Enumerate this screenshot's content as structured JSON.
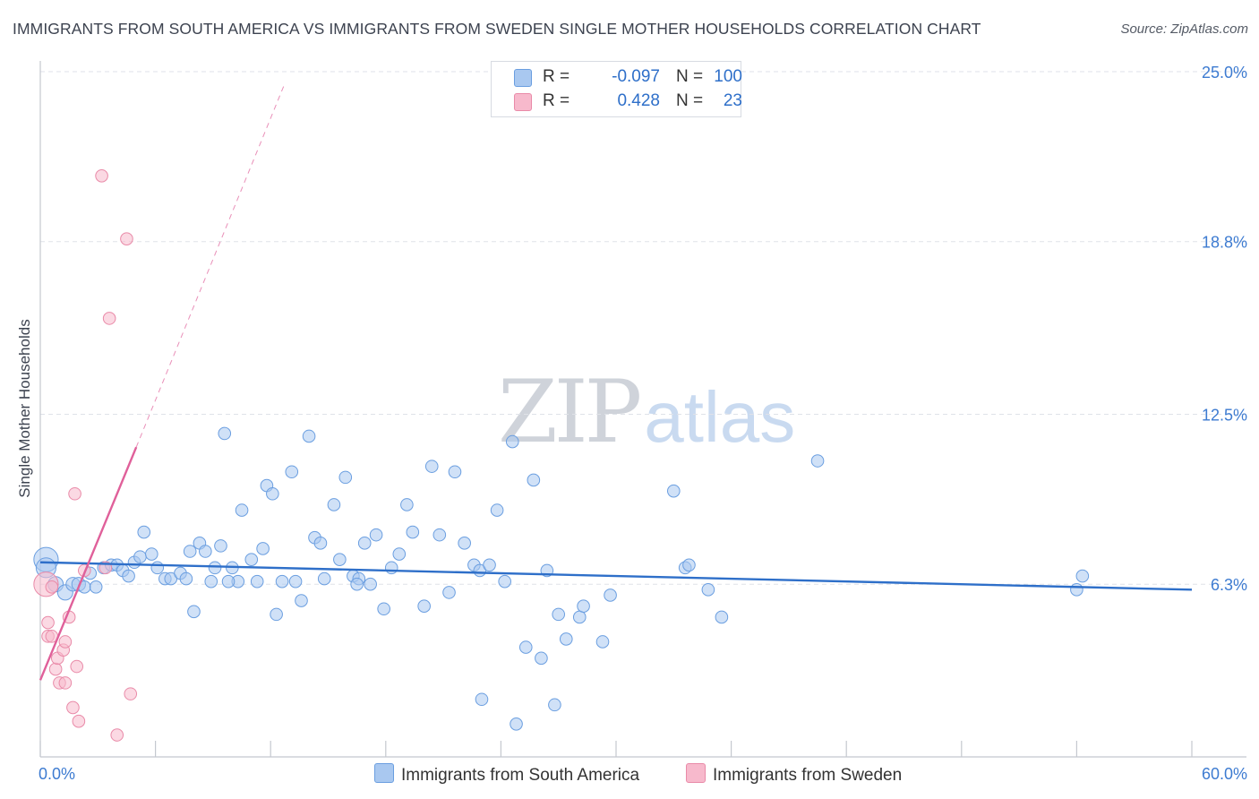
{
  "title": "IMMIGRANTS FROM SOUTH AMERICA VS IMMIGRANTS FROM SWEDEN SINGLE MOTHER HOUSEHOLDS CORRELATION CHART",
  "source": "Source: ZipAtlas.com",
  "watermark": {
    "zip": "ZIP",
    "atlas": "atlas"
  },
  "legend_top": [
    {
      "r_label": "R =",
      "r_value": "-0.097",
      "n_label": "N =",
      "n_value": "100",
      "color": "#a9c8f0",
      "border": "#6a9ee0"
    },
    {
      "r_label": "R =",
      "r_value": "0.428",
      "n_label": "N =",
      "n_value": "23",
      "color": "#f7b9cc",
      "border": "#e98aa8"
    }
  ],
  "chart_data": {
    "type": "scatter",
    "title": "IMMIGRANTS FROM SOUTH AMERICA VS IMMIGRANTS FROM SWEDEN SINGLE MOTHER HOUSEHOLDS CORRELATION CHART",
    "xlabel": "",
    "ylabel": "Single Mother Households",
    "xlim": [
      0,
      60
    ],
    "ylim": [
      0,
      25
    ],
    "x_ticks": [
      0,
      6,
      12,
      18,
      24,
      30,
      36,
      42,
      48,
      54,
      60
    ],
    "x_tick_labels": [
      {
        "value": 0,
        "label": "0.0%"
      },
      {
        "value": 60,
        "label": "60.0%"
      }
    ],
    "y_tick_labels": [
      {
        "value": 6.3,
        "label": "6.3%"
      },
      {
        "value": 12.5,
        "label": "12.5%"
      },
      {
        "value": 18.8,
        "label": "18.8%"
      },
      {
        "value": 25.0,
        "label": "25.0%"
      }
    ],
    "grid": true,
    "legend_position": "bottom",
    "series": [
      {
        "name": "Immigrants from South America",
        "color": "#a9c8f0",
        "stroke": "#6a9ee0",
        "trend_color": "#2e6fc9",
        "trend": {
          "x0": 0,
          "y0": 7.1,
          "x1": 60,
          "y1": 6.1
        },
        "points": [
          [
            0.3,
            7.2,
            1.6
          ],
          [
            0.3,
            6.9,
            1.3
          ],
          [
            0.8,
            6.3,
            1.0
          ],
          [
            1.3,
            6.0,
            1.0
          ],
          [
            1.7,
            6.3,
            0.9
          ],
          [
            2.0,
            6.3,
            0.9
          ],
          [
            2.3,
            6.2,
            0.8
          ],
          [
            2.6,
            6.7,
            0.8
          ],
          [
            2.9,
            6.2,
            0.8
          ],
          [
            3.3,
            6.9,
            0.8
          ],
          [
            3.7,
            7.0,
            0.8
          ],
          [
            4.0,
            7.0,
            0.8
          ],
          [
            4.3,
            6.8,
            0.8
          ],
          [
            4.6,
            6.6,
            0.8
          ],
          [
            4.9,
            7.1,
            0.8
          ],
          [
            5.2,
            7.3,
            0.8
          ],
          [
            5.4,
            8.2,
            0.8
          ],
          [
            5.8,
            7.4,
            0.8
          ],
          [
            6.1,
            6.9,
            0.8
          ],
          [
            6.5,
            6.5,
            0.8
          ],
          [
            6.8,
            6.5,
            0.8
          ],
          [
            7.3,
            6.7,
            0.8
          ],
          [
            7.6,
            6.5,
            0.8
          ],
          [
            7.8,
            7.5,
            0.8
          ],
          [
            8.0,
            5.3,
            0.8
          ],
          [
            8.3,
            7.8,
            0.8
          ],
          [
            8.6,
            7.5,
            0.8
          ],
          [
            8.9,
            6.4,
            0.8
          ],
          [
            9.1,
            6.9,
            0.8
          ],
          [
            9.4,
            7.7,
            0.8
          ],
          [
            9.6,
            11.8,
            0.8
          ],
          [
            10.0,
            6.9,
            0.8
          ],
          [
            10.3,
            6.4,
            0.8
          ],
          [
            10.5,
            9.0,
            0.8
          ],
          [
            11.0,
            7.2,
            0.8
          ],
          [
            11.3,
            6.4,
            0.8
          ],
          [
            11.6,
            7.6,
            0.8
          ],
          [
            11.8,
            9.9,
            0.8
          ],
          [
            12.1,
            9.6,
            0.8
          ],
          [
            12.3,
            5.2,
            0.8
          ],
          [
            12.6,
            6.4,
            0.8
          ],
          [
            13.1,
            10.4,
            0.8
          ],
          [
            13.3,
            6.4,
            0.8
          ],
          [
            13.6,
            5.7,
            0.8
          ],
          [
            14.0,
            11.7,
            0.8
          ],
          [
            14.3,
            8.0,
            0.8
          ],
          [
            14.6,
            7.8,
            0.8
          ],
          [
            14.8,
            6.5,
            0.8
          ],
          [
            15.3,
            9.2,
            0.8
          ],
          [
            15.6,
            7.2,
            0.8
          ],
          [
            15.9,
            10.2,
            0.8
          ],
          [
            16.3,
            6.6,
            0.8
          ],
          [
            16.6,
            6.5,
            0.8
          ],
          [
            16.9,
            7.8,
            0.8
          ],
          [
            17.2,
            6.3,
            0.8
          ],
          [
            17.5,
            8.1,
            0.8
          ],
          [
            17.9,
            5.4,
            0.8
          ],
          [
            18.3,
            6.9,
            0.8
          ],
          [
            18.7,
            7.4,
            0.8
          ],
          [
            19.1,
            9.2,
            0.8
          ],
          [
            19.4,
            8.2,
            0.8
          ],
          [
            20.0,
            5.5,
            0.8
          ],
          [
            20.4,
            10.6,
            0.8
          ],
          [
            20.8,
            8.1,
            0.8
          ],
          [
            21.3,
            6.0,
            0.8
          ],
          [
            21.6,
            10.4,
            0.8
          ],
          [
            22.1,
            7.8,
            0.8
          ],
          [
            22.6,
            7.0,
            0.8
          ],
          [
            22.9,
            6.8,
            0.8
          ],
          [
            23.0,
            2.1,
            0.8
          ],
          [
            23.4,
            7.0,
            0.8
          ],
          [
            23.8,
            9.0,
            0.8
          ],
          [
            24.2,
            6.4,
            0.8
          ],
          [
            24.6,
            11.5,
            0.8
          ],
          [
            24.8,
            1.2,
            0.8
          ],
          [
            25.3,
            4.0,
            0.8
          ],
          [
            25.7,
            10.1,
            0.8
          ],
          [
            26.1,
            3.6,
            0.8
          ],
          [
            26.4,
            6.8,
            0.8
          ],
          [
            26.8,
            1.9,
            0.8
          ],
          [
            27.0,
            5.2,
            0.8
          ],
          [
            27.4,
            4.3,
            0.8
          ],
          [
            28.1,
            5.1,
            0.8
          ],
          [
            28.3,
            5.5,
            0.8
          ],
          [
            29.3,
            4.2,
            0.8
          ],
          [
            29.7,
            5.9,
            0.8
          ],
          [
            33.0,
            9.7,
            0.8
          ],
          [
            33.6,
            6.9,
            0.8
          ],
          [
            33.8,
            7.0,
            0.8
          ],
          [
            34.8,
            6.1,
            0.8
          ],
          [
            35.5,
            5.1,
            0.8
          ],
          [
            40.5,
            10.8,
            0.8
          ],
          [
            54.0,
            6.1,
            0.8
          ],
          [
            54.3,
            6.6,
            0.8
          ],
          [
            16.5,
            6.3,
            0.8
          ],
          [
            9.8,
            6.4,
            0.8
          ]
        ]
      },
      {
        "name": "Immigrants from Sweden",
        "color": "#f7b9cc",
        "stroke": "#e98aa8",
        "trend_color": "#e0609a",
        "trend": {
          "x0": 0,
          "y0": 2.8,
          "x1": 5.0,
          "y1": 11.3
        },
        "trend_dashed": {
          "x0": 5.0,
          "y0": 11.3,
          "x1": 12.7,
          "y1": 24.5
        },
        "points": [
          [
            0.3,
            6.3,
            1.6
          ],
          [
            0.4,
            4.9,
            0.8
          ],
          [
            0.4,
            4.4,
            0.8
          ],
          [
            0.6,
            4.4,
            0.8
          ],
          [
            0.8,
            3.2,
            0.8
          ],
          [
            0.9,
            3.6,
            0.8
          ],
          [
            1.0,
            2.7,
            0.8
          ],
          [
            1.2,
            3.9,
            0.8
          ],
          [
            1.3,
            2.7,
            0.8
          ],
          [
            1.3,
            4.2,
            0.8
          ],
          [
            1.5,
            5.1,
            0.8
          ],
          [
            1.7,
            1.8,
            0.8
          ],
          [
            1.8,
            9.6,
            0.8
          ],
          [
            1.9,
            3.3,
            0.8
          ],
          [
            2.0,
            1.3,
            0.8
          ],
          [
            2.3,
            6.8,
            0.8
          ],
          [
            3.2,
            21.2,
            0.8
          ],
          [
            3.4,
            6.9,
            0.8
          ],
          [
            3.6,
            16.0,
            0.8
          ],
          [
            4.0,
            0.8,
            0.8
          ],
          [
            4.5,
            18.9,
            0.8
          ],
          [
            4.7,
            2.3,
            0.8
          ],
          [
            0.6,
            6.2,
            0.8
          ]
        ]
      }
    ]
  }
}
